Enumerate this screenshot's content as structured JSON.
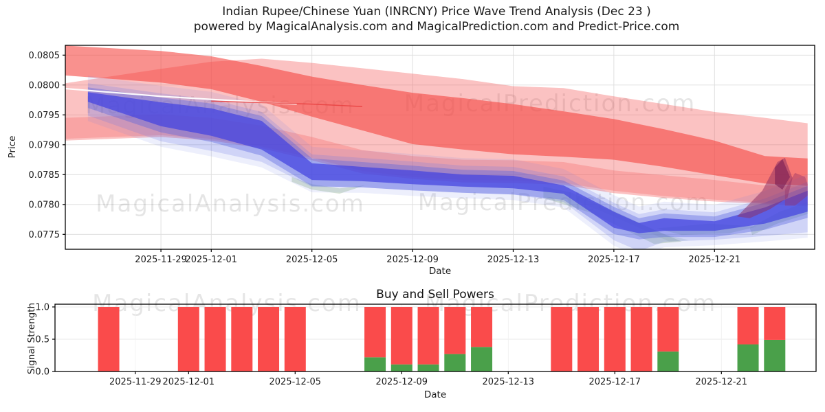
{
  "figure": {
    "title_line1": "Indian Rupee/Chinese Yuan (INRCNY) Price Wave Trend Analysis (Dec 23 )",
    "title_line2": "powered by MagicalAnalysis.com and MagicalPrediction.com and Predict-Price.com"
  },
  "watermarks": {
    "analysis": "MagicalAnalysis.com",
    "prediction": "MagicalPrediction.com"
  },
  "colors": {
    "red_core": "#f5413d",
    "red_envelope": "#f55555",
    "red_low": "#f55555",
    "blue_core": "#4343e0",
    "blue_mid": "#5560e0",
    "blue_light": "#6a78e8",
    "green_band": "#8fb482",
    "maroon": "#8e2f63",
    "maroon_dark": "#7a1f55",
    "maroon_tail": "#993366",
    "bar_red": "#fa4b4b",
    "bar_green": "#4aa04a",
    "white_line": "#ffffff",
    "red_line": "#e84040",
    "grid": "#dcdcdc",
    "spine": "#000000"
  },
  "chart_data": [
    {
      "type": "area",
      "title": "Indian Rupee/Chinese Yuan (INRCNY) Price Wave Trend Analysis (Dec 23 )",
      "xlabel": "Date",
      "ylabel": "Price",
      "ylim": [
        0.07724,
        0.08066
      ],
      "grid": true,
      "yticks": [
        "0.0805",
        "0.0800",
        "0.0795",
        "0.0790",
        "0.0785",
        "0.0780",
        "0.0775"
      ],
      "ytick_values": [
        0.0805,
        0.08,
        0.0795,
        0.079,
        0.0785,
        0.078,
        0.0775
      ],
      "xticks": [
        {
          "date": "2025-11-29",
          "label": "2025-11-29"
        },
        {
          "date": "2025-12-01",
          "label": "2025-12-01"
        },
        {
          "date": "2025-12-05",
          "label": "2025-12-05"
        },
        {
          "date": "2025-12-09",
          "label": "2025-12-09"
        },
        {
          "date": "2025-12-13",
          "label": "2025-12-13"
        },
        {
          "date": "2025-12-17",
          "label": "2025-12-17"
        },
        {
          "date": "2025-12-21",
          "label": "2025-12-21"
        }
      ],
      "bands": {
        "red_days": [
          -5.8,
          -2,
          0,
          2,
          4,
          6,
          8,
          10,
          12,
          14,
          16,
          18,
          20,
          22,
          23.7
        ],
        "red_core_hi": [
          0.08066,
          0.08057,
          0.08048,
          0.08032,
          0.08014,
          0.08,
          0.07987,
          0.07978,
          0.07968,
          0.07956,
          0.07943,
          0.07926,
          0.07907,
          0.07881,
          0.07877
        ],
        "red_core_lo": [
          0.08016,
          0.08004,
          0.07993,
          0.07972,
          0.07947,
          0.07924,
          0.07901,
          0.07892,
          0.07884,
          0.0788,
          0.07875,
          0.07863,
          0.07849,
          0.07835,
          0.07831
        ],
        "red_env_hi": [
          0.08003,
          0.08027,
          0.08039,
          0.08044,
          0.08037,
          0.08028,
          0.08019,
          0.0801,
          0.07998,
          0.07995,
          0.07981,
          0.07968,
          0.07955,
          0.07945,
          0.07936
        ],
        "red_env_lo": [
          0.07907,
          0.07913,
          0.07907,
          0.07894,
          0.07874,
          0.07852,
          0.07843,
          0.07837,
          0.07836,
          0.07833,
          0.07819,
          0.07811,
          0.07805,
          0.07801,
          0.07797
        ],
        "red_low_hi": [
          0.07945,
          0.07951,
          0.07945,
          0.07932,
          0.07913,
          0.07891,
          0.07881,
          0.07875,
          0.07874,
          0.07871,
          0.07857,
          0.07849,
          0.07841,
          0.07832,
          0.0783
        ],
        "red_low_lo": [
          0.0791,
          0.07916,
          0.0791,
          0.07897,
          0.07878,
          0.07856,
          0.07846,
          0.07841,
          0.0784,
          0.07836,
          0.07823,
          0.07814,
          0.07808,
          0.07803,
          0.078
        ],
        "blue_days": [
          -4.9,
          -2,
          0,
          2,
          4,
          6,
          8,
          10,
          12,
          14,
          16,
          17,
          18,
          20,
          22,
          23.7
        ],
        "blue_hi": [
          0.07988,
          0.07971,
          0.07961,
          0.0794,
          0.07869,
          0.07863,
          0.07857,
          0.0785,
          0.07848,
          0.07832,
          0.07788,
          0.07769,
          0.07777,
          0.07772,
          0.07795,
          0.07823
        ],
        "blue_lo": [
          0.07972,
          0.07931,
          0.07915,
          0.07892,
          0.07841,
          0.07839,
          0.07834,
          0.0783,
          0.07827,
          0.07818,
          0.07761,
          0.07752,
          0.07756,
          0.07756,
          0.07768,
          0.07788
        ]
      },
      "lines": {
        "white_line": [
          [
            -5.8,
            0.07994
          ],
          [
            -2,
            0.07981
          ],
          [
            0,
            0.07976
          ],
          [
            2,
            0.07971
          ],
          [
            3.4,
            0.07968
          ]
        ],
        "red_line": [
          [
            0,
            0.07973
          ],
          [
            4,
            0.07968
          ],
          [
            6,
            0.07964
          ]
        ]
      },
      "green_polygons": [
        [
          [
            3.2,
            0.07846
          ],
          [
            4.0,
            0.07834
          ],
          [
            5.1,
            0.07827
          ],
          [
            6.1,
            0.07832
          ],
          [
            5.1,
            0.07818
          ],
          [
            4.0,
            0.07825
          ],
          [
            3.2,
            0.07838
          ]
        ],
        [
          [
            13.2,
            0.0783
          ],
          [
            14.3,
            0.0782
          ],
          [
            17.3,
            0.07763
          ],
          [
            18.7,
            0.07738
          ],
          [
            17.6,
            0.07734
          ],
          [
            15.1,
            0.07786
          ],
          [
            13.2,
            0.07811
          ]
        ],
        [
          [
            14.5,
            0.0782
          ],
          [
            15.6,
            0.07797
          ],
          [
            18.0,
            0.0775
          ],
          [
            19.0,
            0.0774
          ],
          [
            18.2,
            0.07738
          ],
          [
            16.0,
            0.0778
          ],
          [
            14.5,
            0.07806
          ]
        ],
        [
          [
            17.7,
            0.0776
          ],
          [
            19.8,
            0.07768
          ],
          [
            21.7,
            0.07763
          ],
          [
            20.6,
            0.07752
          ],
          [
            18.7,
            0.07749
          ]
        ],
        [
          [
            21.4,
            0.07761
          ],
          [
            22.6,
            0.07788
          ],
          [
            23.7,
            0.07804
          ],
          [
            23.7,
            0.07784
          ],
          [
            22.5,
            0.07768
          ],
          [
            21.5,
            0.07749
          ]
        ]
      ],
      "maroon_polygons": [
        [
          [
            20.9,
            0.0778
          ],
          [
            21.9,
            0.07823
          ],
          [
            22.5,
            0.07871
          ],
          [
            22.8,
            0.07878
          ],
          [
            23.1,
            0.07844
          ],
          [
            22.9,
            0.07811
          ],
          [
            22.2,
            0.07792
          ],
          [
            21.4,
            0.07777
          ]
        ],
        [
          [
            22.4,
            0.07862
          ],
          [
            22.7,
            0.07876
          ],
          [
            23.0,
            0.07846
          ],
          [
            22.7,
            0.07825
          ],
          [
            22.4,
            0.07834
          ]
        ],
        [
          [
            22.8,
            0.07825
          ],
          [
            23.2,
            0.07853
          ],
          [
            23.6,
            0.07846
          ],
          [
            23.7,
            0.07834
          ],
          [
            23.7,
            0.07815
          ],
          [
            23.2,
            0.07798
          ],
          [
            22.8,
            0.07798
          ]
        ]
      ]
    },
    {
      "type": "bar",
      "stacked": true,
      "title": "Buy and Sell Powers",
      "xlabel": "Date",
      "ylabel": "Signal Strength",
      "ylim": [
        0,
        1.04
      ],
      "grid": true,
      "yticks": [
        "1.0",
        "0.5",
        "0.0"
      ],
      "ytick_values": [
        1.0,
        0.5,
        0.0
      ],
      "xticks": [
        {
          "date": "2025-11-29",
          "label": "2025-11-29"
        },
        {
          "date": "2025-12-01",
          "label": "2025-12-01"
        },
        {
          "date": "2025-12-05",
          "label": "2025-12-05"
        },
        {
          "date": "2025-12-09",
          "label": "2025-12-09"
        },
        {
          "date": "2025-12-13",
          "label": "2025-12-13"
        },
        {
          "date": "2025-12-17",
          "label": "2025-12-17"
        },
        {
          "date": "2025-12-21",
          "label": "2025-12-21"
        }
      ],
      "categories": [
        "2025-11-28",
        "2025-12-01",
        "2025-12-02",
        "2025-12-03",
        "2025-12-04",
        "2025-12-05",
        "2025-12-08",
        "2025-12-09",
        "2025-12-10",
        "2025-12-11",
        "2025-12-12",
        "2025-12-15",
        "2025-12-16",
        "2025-12-17",
        "2025-12-18",
        "2025-12-19",
        "2025-12-22",
        "2025-12-23"
      ],
      "series": [
        {
          "name": "buy",
          "color": "#4aa04a",
          "values": [
            0,
            0,
            0,
            0,
            0,
            0,
            0.22,
            0.11,
            0.11,
            0.27,
            0.38,
            0,
            0,
            0,
            0,
            0.31,
            0.42,
            0.49
          ]
        },
        {
          "name": "sell",
          "color": "#fa4b4b",
          "values": [
            1,
            1,
            1,
            1,
            1,
            1,
            0.78,
            0.89,
            0.89,
            0.73,
            0.62,
            1,
            1,
            1,
            1,
            0.69,
            0.58,
            0.51
          ]
        }
      ]
    }
  ]
}
